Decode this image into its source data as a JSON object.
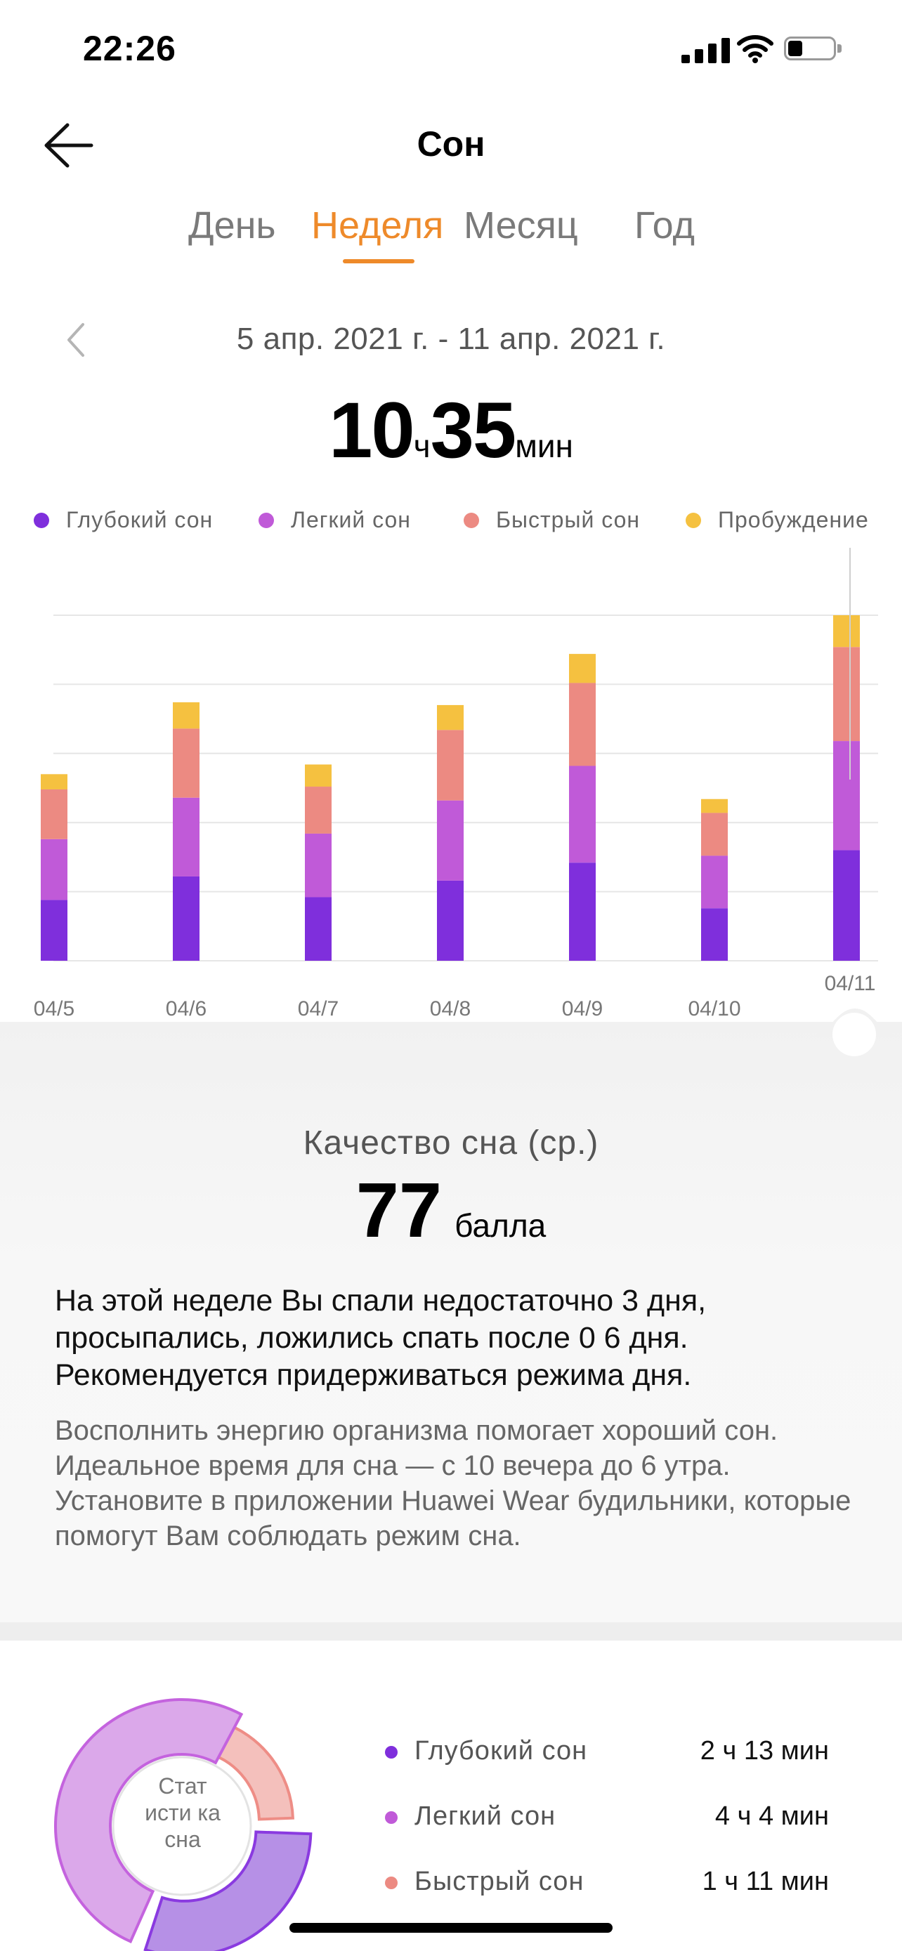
{
  "status_bar": {
    "time": "22:26"
  },
  "header": {
    "title": "Сон"
  },
  "tabs": [
    {
      "label": "День",
      "active": false
    },
    {
      "label": "Неделя",
      "active": true
    },
    {
      "label": "Месяц",
      "active": false
    },
    {
      "label": "Год",
      "active": false
    }
  ],
  "range": {
    "label": "5 апр. 2021 г. - 11 апр. 2021 г."
  },
  "total": {
    "hours": "10",
    "hours_unit": "ч",
    "minutes": "35",
    "minutes_unit": "мин"
  },
  "colors": {
    "deep": "#7f2fdc",
    "light": "#c05ad8",
    "rem": "#ec8a82",
    "awake": "#f5c140",
    "accent": "#ee8a2a"
  },
  "legend": [
    {
      "label": "Глубокий сон",
      "color": "#7f2fdc"
    },
    {
      "label": "Легкий сон",
      "color": "#c05ad8"
    },
    {
      "label": "Быстрый сон",
      "color": "#ec8a82"
    },
    {
      "label": "Пробуждение",
      "color": "#f5c140"
    }
  ],
  "chart_data": {
    "type": "bar",
    "stacked": true,
    "categories": [
      "04/5",
      "04/6",
      "04/7",
      "04/8",
      "04/9",
      "04/10",
      "04/11"
    ],
    "selected_category": "04/11",
    "grid": true,
    "units": "relative (no y-axis labels)",
    "ylim": [
      0,
      5
    ],
    "series": [
      {
        "name": "Глубокий сон",
        "color": "#7f2fdc",
        "values": [
          0.88,
          1.22,
          0.92,
          1.16,
          1.42,
          0.76,
          1.6
        ]
      },
      {
        "name": "Легкий сон",
        "color": "#c05ad8",
        "values": [
          0.88,
          1.14,
          0.92,
          1.16,
          1.4,
          0.76,
          1.58
        ]
      },
      {
        "name": "Быстрый сон",
        "color": "#ec8a82",
        "values": [
          0.72,
          1.0,
          0.68,
          1.02,
          1.2,
          0.62,
          1.36
        ]
      },
      {
        "name": "Пробуждение",
        "color": "#f5c140",
        "values": [
          0.22,
          0.38,
          0.32,
          0.36,
          0.42,
          0.2,
          0.46
        ]
      }
    ]
  },
  "quality": {
    "label": "Качество сна (ср.)",
    "value": "77",
    "unit": "балла",
    "summary": "На этой неделе Вы спали недостаточно 3 дня, просыпались, ложились спать после 0 6 дня. Рекомендуется придерживаться режима дня.",
    "advice": "Восполнить энергию организма помогает хороший сон. Идеальное время для сна — с 10 вечера до 6 утра. Установите в приложении Huawei Wear будильники, которые помогут Вам соблюдать режим сна."
  },
  "stats": {
    "center_label": "Стат исти ка сна",
    "items": [
      {
        "label": "Глубокий сон",
        "value": "2 ч 13 мин",
        "color": "#7f2fdc"
      },
      {
        "label": "Легкий сон",
        "value": "4 ч 4 мин",
        "color": "#c05ad8"
      },
      {
        "label": "Быстрый сон",
        "value": "1 ч 11 мин",
        "color": "#ec8a82"
      }
    ]
  }
}
